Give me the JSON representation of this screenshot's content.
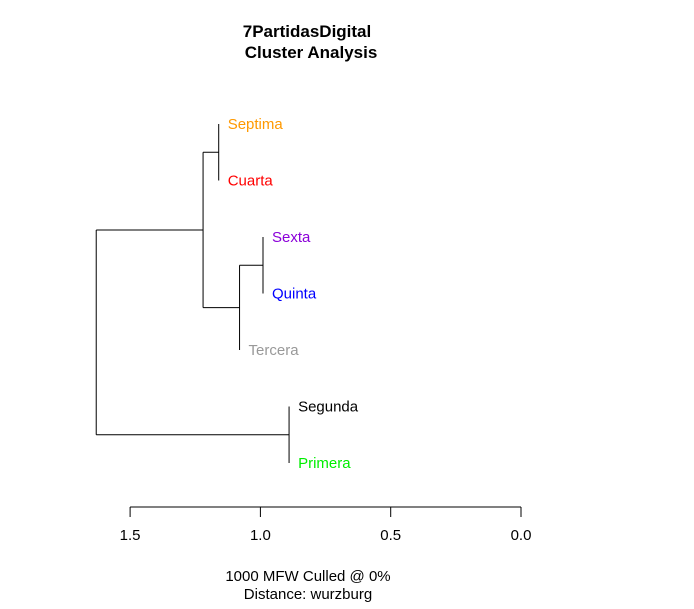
{
  "chart_data": {
    "type": "dendrogram",
    "title_lines": [
      "7PartidasDigital",
      "Cluster Analysis"
    ],
    "caption_lines": [
      "1000 MFW  Culled @ 0%",
      "Distance: wurzburg"
    ],
    "x_axis": {
      "range": [
        1.5,
        0.0
      ],
      "ticks": [
        1.5,
        1.0,
        0.5,
        0.0
      ],
      "tick_labels": [
        "1.5",
        "1.0",
        "0.5",
        "0.0"
      ]
    },
    "leaves": [
      {
        "id": "Septima",
        "label": "Septima",
        "color": "#ff9900",
        "height": 1.16
      },
      {
        "id": "Cuarta",
        "label": "Cuarta",
        "color": "#ff0000",
        "height": 1.16
      },
      {
        "id": "Sexta",
        "label": "Sexta",
        "color": "#8b00d9",
        "height": 0.99
      },
      {
        "id": "Quinta",
        "label": "Quinta",
        "color": "#0000ff",
        "height": 0.99
      },
      {
        "id": "Tercera",
        "label": "Tercera",
        "color": "#999999",
        "height": 1.08
      },
      {
        "id": "Segunda",
        "label": "Segunda",
        "color": "#000000",
        "height": 0.89
      },
      {
        "id": "Primera",
        "label": "Primera",
        "color": "#00ee00",
        "height": 0.89
      }
    ],
    "merges": [
      {
        "id": "m1",
        "children": [
          "Septima",
          "Cuarta"
        ],
        "height": 1.16
      },
      {
        "id": "m2",
        "children": [
          "Sexta",
          "Quinta"
        ],
        "height": 0.99
      },
      {
        "id": "m3",
        "children": [
          "m2",
          "Tercera"
        ],
        "height": 1.08
      },
      {
        "id": "m4",
        "children": [
          "m1",
          "m3"
        ],
        "height": 1.22
      },
      {
        "id": "m5",
        "children": [
          "Segunda",
          "Primera"
        ],
        "height": 0.89
      },
      {
        "id": "m6",
        "children": [
          "m4",
          "m5"
        ],
        "height": 1.63
      }
    ]
  }
}
